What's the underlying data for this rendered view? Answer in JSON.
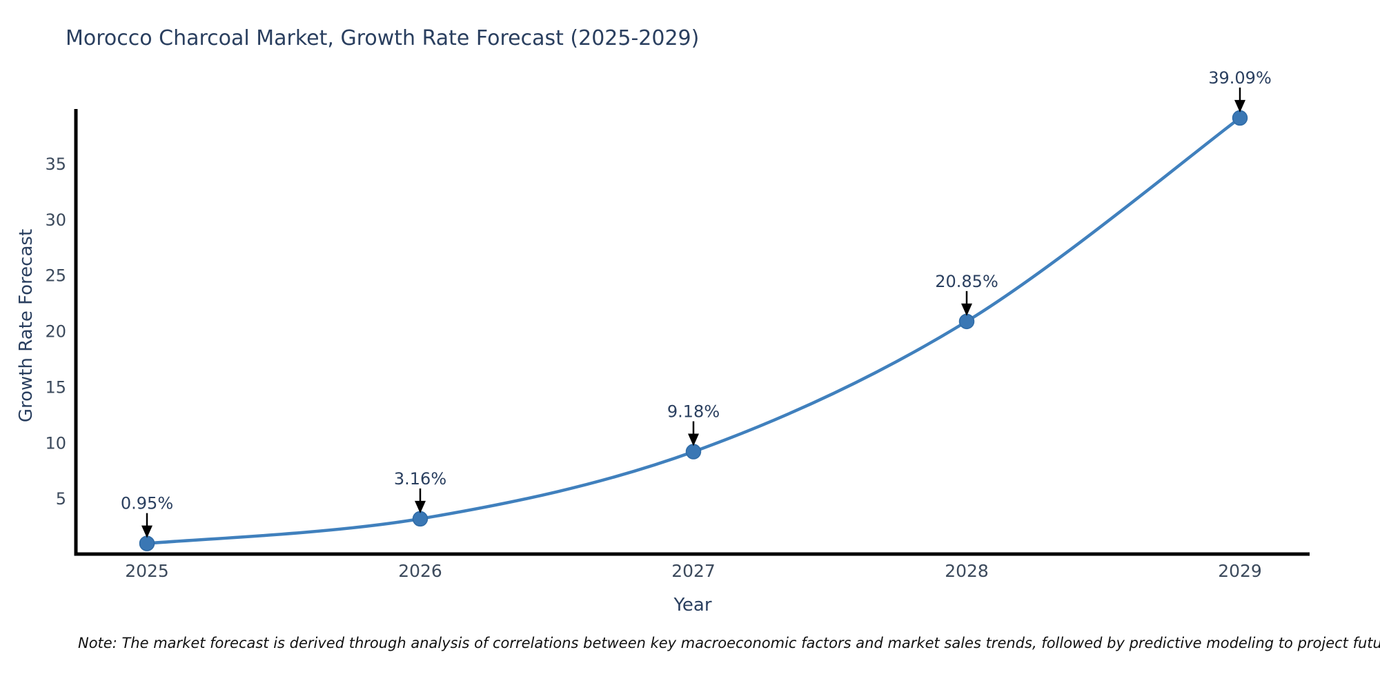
{
  "note": "Note: The market forecast is derived through analysis of correlations between key macroeconomic factors and market sales trends, followed by predictive modeling to project future sales",
  "colors": {
    "line": "#4080bd",
    "marker": "#3a77b4",
    "marker_edge": "#2f6ba6",
    "axis": "#000000",
    "title_text": "#2a3f5f",
    "tick_text": "#3c4a5c",
    "annotation_text": "#2a3f5f",
    "annotation_arrow": "#000000",
    "background": "#ffffff"
  },
  "chart_data": {
    "type": "line",
    "title": "Morocco Charcoal Market, Growth Rate Forecast (2025-2029)",
    "xlabel": "Year",
    "ylabel": "Growth Rate Forecast",
    "x": [
      2025,
      2026,
      2027,
      2028,
      2029
    ],
    "series": [
      {
        "name": "Growth Rate Forecast",
        "values": [
          0.95,
          3.16,
          9.18,
          20.85,
          39.09
        ]
      }
    ],
    "point_labels": [
      "0.95%",
      "3.16%",
      "9.18%",
      "20.85%",
      "39.09%"
    ],
    "x_tick_labels": [
      "2025",
      "2026",
      "2027",
      "2028",
      "2029"
    ],
    "y_ticks": [
      5,
      10,
      15,
      20,
      25,
      30,
      35
    ],
    "ylim": [
      0,
      39.9
    ],
    "grid": false,
    "legend": false,
    "line_shape": "spline",
    "markers": true,
    "annotations_have_arrows": true
  }
}
